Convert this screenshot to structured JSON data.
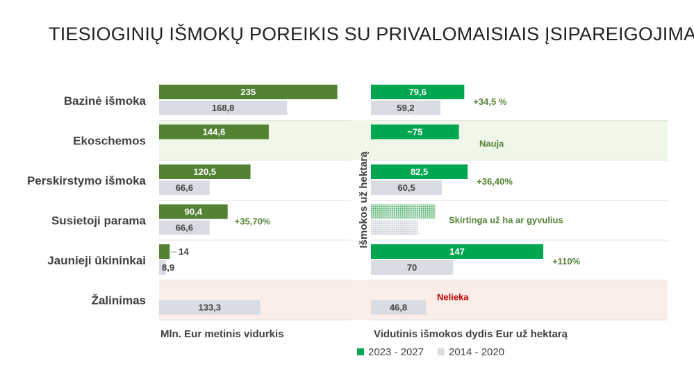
{
  "title": "TIESIOGINIŲ IŠMOKŲ POREIKIS SU PRIVALOMAISIAIS ĮSIPAREIGOJIMAIS",
  "colors": {
    "left_new": "#548235",
    "right_new": "#00a651",
    "old": "#d9dce3",
    "note_green": "#548235",
    "note_red": "#c00000",
    "band_green": "#eef7e8",
    "band_red": "#fbeee8"
  },
  "chart_data": [
    {
      "type": "bar",
      "orientation": "horizontal",
      "xlabel": "Mln. Eur metinis vidurkis",
      "xlim": [
        0,
        240
      ],
      "categories": [
        "Bazinė išmoka",
        "Ekoschemos",
        "Perskirstymo išmoka",
        "Susietoji parama",
        "Jaunieji ūkininkai",
        "Žalinimas"
      ],
      "series": [
        {
          "name": "2023 - 2027",
          "values": [
            235,
            144.6,
            120.5,
            90.4,
            14,
            null
          ],
          "labels": [
            "235",
            "144,6",
            "120,5",
            "90,4",
            "14",
            ""
          ]
        },
        {
          "name": "2014 - 2020",
          "values": [
            168.8,
            null,
            66.6,
            66.6,
            8.9,
            133.3
          ],
          "labels": [
            "168,8",
            "",
            "66,6",
            "66,6",
            "8,9",
            "133,3"
          ]
        }
      ],
      "notes": [
        "",
        "",
        "",
        "+35,70%",
        "",
        ""
      ]
    },
    {
      "type": "bar",
      "orientation": "horizontal",
      "xlabel": "Vidutinis išmokos dydis Eur už hektarą",
      "ylabel": "Išmokos už hektarą",
      "xlim": [
        0,
        160
      ],
      "categories": [
        "Bazinė išmoka",
        "Ekoschemos",
        "Perskirstymo išmoka",
        "Susietoji parama",
        "Jaunieji ūkininkai",
        "Žalinimas"
      ],
      "series": [
        {
          "name": "2023 - 2027",
          "values": [
            79.6,
            75,
            82.5,
            55,
            147,
            null
          ],
          "labels": [
            "79,6",
            "~75",
            "82,5",
            "",
            "147",
            ""
          ]
        },
        {
          "name": "2014 - 2020",
          "values": [
            59.2,
            null,
            60.5,
            40,
            70,
            46.8
          ],
          "labels": [
            "59,2",
            "",
            "60,5",
            "",
            "70",
            "46,8"
          ]
        }
      ],
      "notes": [
        "+34,5 %",
        "Nauja",
        "+36,40%",
        "Skirtinga už ha ar gyvulius",
        "+110%",
        "Nelieka"
      ]
    }
  ],
  "legend": [
    {
      "label": "2023 - 2027",
      "color": "#00a651"
    },
    {
      "label": "2014 - 2020",
      "color": "#d9dce3"
    }
  ]
}
